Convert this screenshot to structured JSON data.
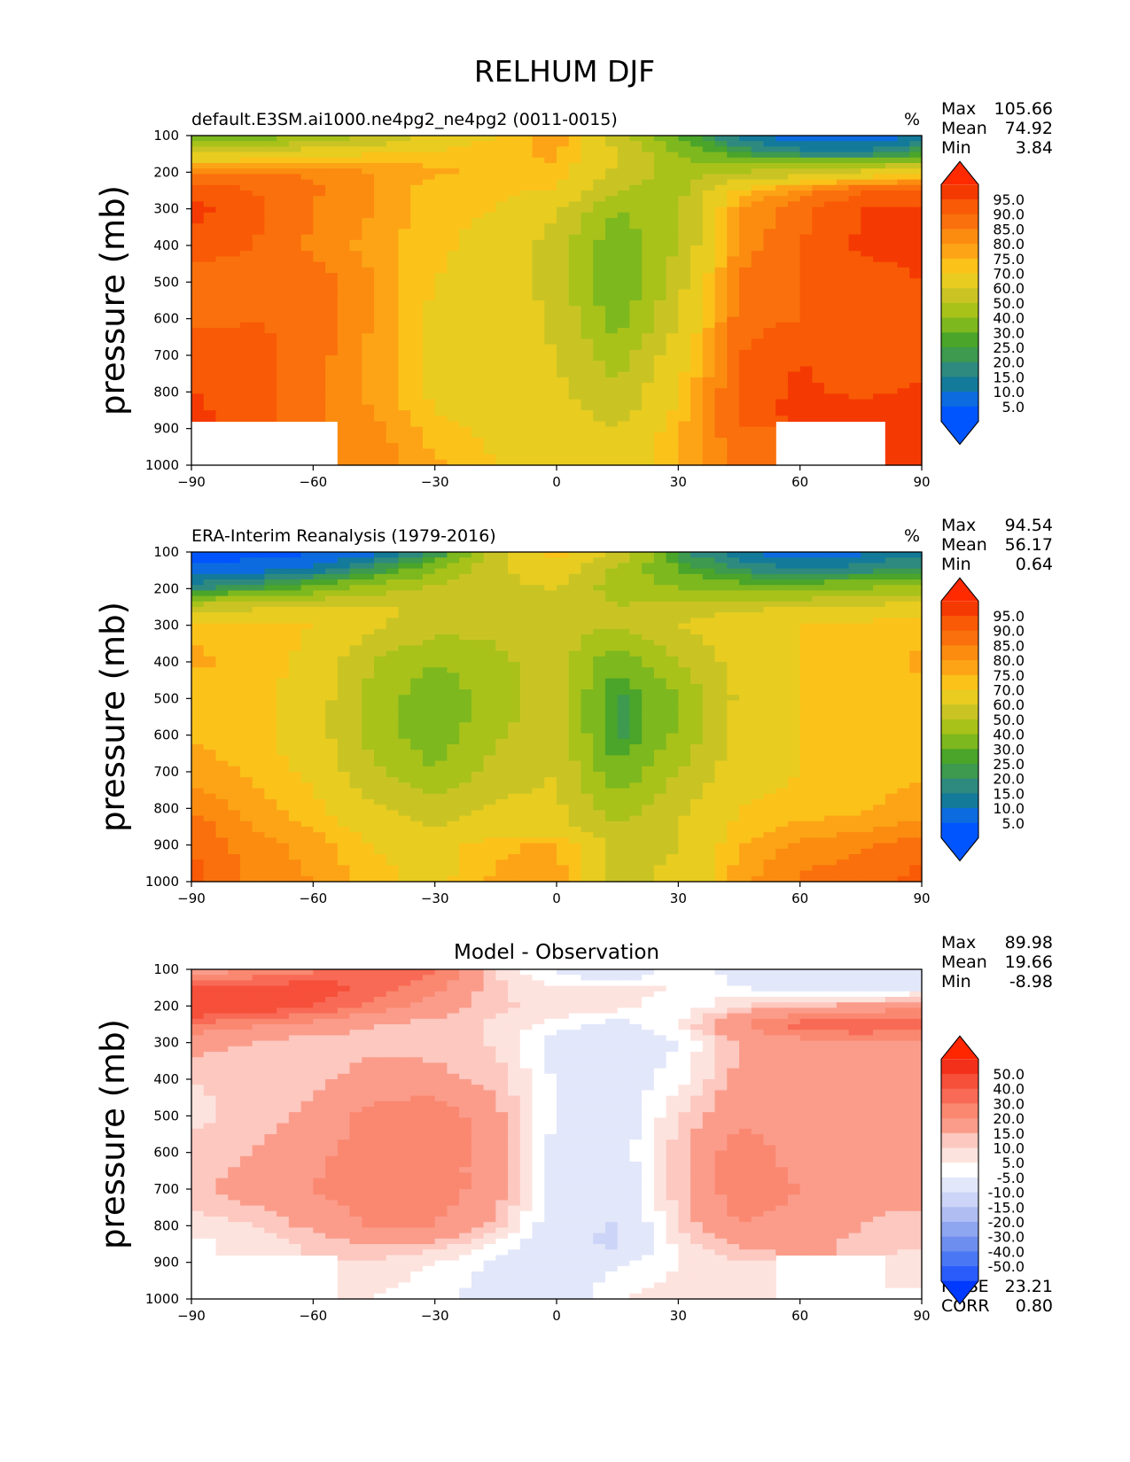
{
  "figure": {
    "title": "RELHUM DJF"
  },
  "chart_data": [
    {
      "type": "heatmap",
      "id": "model",
      "title": "default.E3SM.ai1000.ne4pg2_ne4pg2 (0011-0015)",
      "units": "%",
      "ylabel": "pressure (mb)",
      "xlim": [
        -90,
        90
      ],
      "ylim": [
        1000,
        100
      ],
      "xticks": [
        "−90",
        "−60",
        "−30",
        "0",
        "30",
        "60",
        "90"
      ],
      "yticks": [
        "100",
        "200",
        "300",
        "400",
        "500",
        "600",
        "700",
        "800",
        "900",
        "1000"
      ],
      "stats": [
        {
          "label": "Max",
          "value": "105.66"
        },
        {
          "label": "Mean",
          "value": "74.92"
        },
        {
          "label": "Min",
          "value": "3.84"
        }
      ],
      "colorbar": {
        "labels": [
          "95.0",
          "90.0",
          "85.0",
          "80.0",
          "75.0",
          "70.0",
          "60.0",
          "50.0",
          "40.0",
          "30.0",
          "25.0",
          "20.0",
          "15.0",
          "10.0",
          "5.0"
        ],
        "colors": [
          "#0055ff",
          "#0d6be0",
          "#137a9a",
          "#2e8a7f",
          "#3d9a4e",
          "#4aa52a",
          "#7db81e",
          "#a8c21a",
          "#c9c424",
          "#e8cc20",
          "#fbc21a",
          "#fca416",
          "#fb8c10",
          "#fa700c",
          "#f85a06",
          "#f43a02",
          "#ff2a00"
        ]
      },
      "grid": {
        "lats": [
          -90,
          -75,
          -60,
          -45,
          -30,
          -15,
          0,
          15,
          30,
          45,
          60,
          75,
          90
        ],
        "levels": [
          100,
          150,
          200,
          250,
          300,
          400,
          500,
          600,
          700,
          800,
          850,
          900,
          1000
        ],
        "values": [
          [
            25,
            32,
            42,
            50,
            62,
            70,
            78,
            55,
            30,
            12,
            6,
            5,
            10
          ],
          [
            60,
            62,
            68,
            70,
            72,
            74,
            76,
            60,
            40,
            25,
            18,
            16,
            25
          ],
          [
            85,
            86,
            84,
            80,
            76,
            74,
            74,
            58,
            45,
            50,
            55,
            62,
            70
          ],
          [
            93,
            90,
            86,
            80,
            72,
            71,
            70,
            50,
            47,
            72,
            82,
            90,
            92
          ],
          [
            97,
            92,
            85,
            80,
            71,
            70,
            62,
            40,
            48,
            80,
            88,
            95,
            96
          ],
          [
            93,
            90,
            84,
            78,
            71,
            68,
            55,
            32,
            50,
            82,
            90,
            96,
            96
          ],
          [
            86,
            88,
            88,
            80,
            70,
            68,
            56,
            30,
            56,
            86,
            90,
            93,
            95
          ],
          [
            88,
            90,
            88,
            80,
            68,
            66,
            58,
            34,
            60,
            88,
            90,
            90,
            90
          ],
          [
            94,
            92,
            88,
            78,
            68,
            65,
            60,
            45,
            66,
            90,
            95,
            92,
            92
          ],
          [
            95,
            93,
            86,
            78,
            68,
            65,
            62,
            52,
            70,
            92,
            96,
            94,
            96
          ],
          [
            96,
            93,
            86,
            80,
            70,
            66,
            64,
            55,
            72,
            92,
            97,
            96,
            97
          ],
          [
            null,
            null,
            null,
            82,
            72,
            68,
            66,
            60,
            74,
            90,
            null,
            null,
            98
          ],
          [
            null,
            null,
            null,
            84,
            76,
            70,
            70,
            64,
            75,
            88,
            null,
            null,
            99
          ]
        ]
      }
    },
    {
      "type": "heatmap",
      "id": "obs",
      "title": "ERA-Interim Reanalysis (1979-2016)",
      "units": "%",
      "ylabel": "pressure (mb)",
      "xlim": [
        -90,
        90
      ],
      "ylim": [
        1000,
        100
      ],
      "xticks": [
        "−90",
        "−60",
        "−30",
        "0",
        "30",
        "60",
        "90"
      ],
      "yticks": [
        "100",
        "200",
        "300",
        "400",
        "500",
        "600",
        "700",
        "800",
        "900",
        "1000"
      ],
      "stats": [
        {
          "label": "Max",
          "value": "94.54"
        },
        {
          "label": "Mean",
          "value": "56.17"
        },
        {
          "label": "Min",
          "value": "0.64"
        }
      ],
      "colorbar": {
        "labels": [
          "95.0",
          "90.0",
          "85.0",
          "80.0",
          "75.0",
          "70.0",
          "60.0",
          "50.0",
          "40.0",
          "30.0",
          "25.0",
          "20.0",
          "15.0",
          "10.0",
          "5.0"
        ],
        "colors": [
          "#0055ff",
          "#0d6be0",
          "#137a9a",
          "#2e8a7f",
          "#3d9a4e",
          "#4aa52a",
          "#7db81e",
          "#a8c21a",
          "#c9c424",
          "#e8cc20",
          "#fbc21a",
          "#fca416",
          "#fb8c10",
          "#fa700c",
          "#f85a06",
          "#f43a02",
          "#ff2a00"
        ]
      },
      "grid": {
        "lats": [
          -90,
          -75,
          -60,
          -45,
          -30,
          -15,
          0,
          15,
          30,
          45,
          60,
          75,
          90
        ],
        "levels": [
          100,
          150,
          200,
          250,
          300,
          400,
          500,
          600,
          700,
          800,
          850,
          900,
          1000
        ],
        "values": [
          [
            3,
            3,
            4,
            8,
            18,
            55,
            75,
            60,
            22,
            10,
            6,
            8,
            14
          ],
          [
            6,
            8,
            12,
            22,
            40,
            58,
            66,
            48,
            30,
            20,
            16,
            18,
            22
          ],
          [
            18,
            24,
            34,
            45,
            52,
            58,
            60,
            45,
            40,
            35,
            36,
            40,
            45
          ],
          [
            55,
            58,
            60,
            62,
            58,
            56,
            58,
            50,
            55,
            58,
            60,
            62,
            65
          ],
          [
            74,
            72,
            70,
            62,
            54,
            52,
            56,
            50,
            60,
            66,
            70,
            72,
            74
          ],
          [
            76,
            74,
            68,
            50,
            40,
            48,
            55,
            32,
            50,
            64,
            70,
            72,
            76
          ],
          [
            72,
            72,
            66,
            46,
            32,
            45,
            55,
            22,
            40,
            62,
            70,
            72,
            74
          ],
          [
            74,
            72,
            66,
            45,
            34,
            48,
            58,
            22,
            42,
            64,
            70,
            72,
            74
          ],
          [
            78,
            74,
            68,
            52,
            40,
            55,
            60,
            32,
            50,
            66,
            70,
            72,
            74
          ],
          [
            84,
            78,
            72,
            62,
            55,
            62,
            62,
            45,
            58,
            70,
            72,
            74,
            78
          ],
          [
            88,
            80,
            74,
            66,
            60,
            65,
            64,
            50,
            60,
            72,
            76,
            78,
            82
          ],
          [
            90,
            82,
            78,
            70,
            66,
            74,
            76,
            56,
            60,
            75,
            82,
            84,
            88
          ],
          [
            92,
            84,
            80,
            72,
            68,
            76,
            78,
            58,
            62,
            78,
            86,
            88,
            92
          ]
        ]
      }
    },
    {
      "type": "heatmap",
      "id": "diff",
      "title": "Model - Observation",
      "units": "",
      "ylabel": "pressure (mb)",
      "xlim": [
        -90,
        90
      ],
      "ylim": [
        1000,
        100
      ],
      "xticks": [
        "−90",
        "−60",
        "−30",
        "0",
        "30",
        "60",
        "90"
      ],
      "yticks": [
        "100",
        "200",
        "300",
        "400",
        "500",
        "600",
        "700",
        "800",
        "900",
        "1000"
      ],
      "stats": [
        {
          "label": "Max",
          "value": "89.98"
        },
        {
          "label": "Mean",
          "value": "19.66"
        },
        {
          "label": "Min",
          "value": "-8.98"
        }
      ],
      "bottom_stats": [
        {
          "label": "RMSE",
          "value": "23.21"
        },
        {
          "label": "CORR",
          "value": "0.80"
        }
      ],
      "colorbar": {
        "labels": [
          "50.0",
          "40.0",
          "30.0",
          "20.0",
          "15.0",
          "10.0",
          "5.0",
          "-5.0",
          "-10.0",
          "-15.0",
          "-20.0",
          "-30.0",
          "-40.0",
          "-50.0"
        ],
        "colors": [
          "#0039ff",
          "#2a5cfb",
          "#4a78f4",
          "#6d8eee",
          "#8ea6f0",
          "#afbdf3",
          "#ccd5f7",
          "#e2e7fa",
          "#ffffff",
          "#fde3de",
          "#fcc8bf",
          "#fb9c8b",
          "#fa8870",
          "#f86a55",
          "#f64f3a",
          "#f3301a",
          "#ff2600"
        ]
      },
      "grid": {
        "lats": [
          -90,
          -75,
          -60,
          -45,
          -30,
          -15,
          0,
          15,
          30,
          45,
          60,
          75,
          90
        ],
        "levels": [
          100,
          150,
          200,
          250,
          300,
          400,
          500,
          600,
          700,
          800,
          850,
          900,
          1000
        ],
        "values": [
          [
            22,
            28,
            38,
            42,
            44,
            15,
            3,
            -5,
            8,
            2,
            0,
            -4,
            -4
          ],
          [
            54,
            54,
            56,
            48,
            32,
            16,
            10,
            12,
            10,
            5,
            2,
            -2,
            3
          ],
          [
            67,
            62,
            50,
            35,
            24,
            16,
            14,
            13,
            5,
            15,
            19,
            22,
            25
          ],
          [
            38,
            32,
            26,
            20,
            18,
            14,
            8,
            2,
            10,
            30,
            44,
            52,
            47
          ],
          [
            23,
            20,
            15,
            18,
            18,
            14,
            2,
            -1,
            5,
            20,
            26,
            28,
            25
          ],
          [
            15,
            16,
            18,
            24,
            22,
            18,
            4,
            0,
            8,
            22,
            20,
            23,
            20
          ],
          [
            14,
            16,
            22,
            34,
            38,
            22,
            4,
            0,
            14,
            28,
            25,
            24,
            24
          ],
          [
            16,
            20,
            28,
            34,
            38,
            22,
            2,
            0,
            18,
            36,
            26,
            24,
            22
          ],
          [
            18,
            24,
            30,
            36,
            36,
            24,
            2,
            -2,
            18,
            36,
            30,
            22,
            22
          ],
          [
            12,
            15,
            22,
            32,
            30,
            18,
            -1,
            -6,
            15,
            30,
            26,
            20,
            18
          ],
          [
            8,
            12,
            16,
            20,
            18,
            10,
            -2,
            -7,
            12,
            22,
            22,
            18,
            16
          ],
          [
            null,
            null,
            null,
            14,
            10,
            4,
            -2,
            4,
            10,
            14,
            null,
            null,
            12
          ],
          [
            null,
            null,
            null,
            10,
            6,
            2,
            0,
            10,
            12,
            12,
            null,
            null,
            9
          ]
        ]
      }
    }
  ]
}
